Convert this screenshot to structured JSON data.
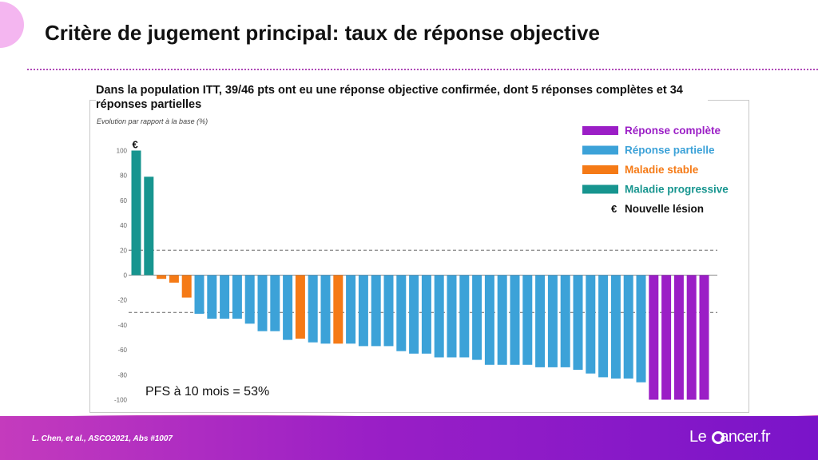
{
  "slide": {
    "title": "Critère de jugement principal: taux de réponse objective",
    "footer_citation": "L. Chen, et al., ASCO2021, Abs #1007",
    "logo_prefix": "Le ",
    "logo_suffix": "ancer.fr"
  },
  "colors": {
    "complete": "#9b1ec6",
    "partial": "#3ca2d8",
    "stable": "#f57a16",
    "progressive": "#17958f",
    "accent": "#b04ab8"
  },
  "chart_data": {
    "type": "bar",
    "title": "Dans la population ITT, 39/46 pts ont eu une réponse objective confirmée, dont 5 réponses complètes et 34 réponses partielles",
    "ylabel": "Evolution par rapport à la base (%)",
    "ylim": [
      -100,
      100
    ],
    "yticks": [
      100,
      80,
      60,
      40,
      20,
      0,
      -20,
      -40,
      -60,
      -80,
      -100
    ],
    "reference_lines": [
      20,
      -30
    ],
    "annotation": "PFS à 10 mois = 53%",
    "marker_symbol": "€",
    "legend_position": "top-right",
    "legend": [
      {
        "label": "Réponse complète",
        "key": "complete"
      },
      {
        "label": "Réponse partielle",
        "key": "partial"
      },
      {
        "label": "Maladie stable",
        "key": "stable"
      },
      {
        "label": "Maladie progressive",
        "key": "progressive"
      },
      {
        "label": "Nouvelle lésion",
        "key": "new_lesion",
        "symbol": "€"
      }
    ],
    "bars": [
      {
        "value": 100,
        "category": "progressive",
        "new_lesion": true
      },
      {
        "value": 79,
        "category": "progressive"
      },
      {
        "value": -3,
        "category": "stable"
      },
      {
        "value": -6,
        "category": "stable"
      },
      {
        "value": -18,
        "category": "stable"
      },
      {
        "value": -31,
        "category": "partial"
      },
      {
        "value": -35,
        "category": "partial"
      },
      {
        "value": -35,
        "category": "partial"
      },
      {
        "value": -35,
        "category": "partial"
      },
      {
        "value": -39,
        "category": "partial"
      },
      {
        "value": -45,
        "category": "partial"
      },
      {
        "value": -45,
        "category": "partial"
      },
      {
        "value": -52,
        "category": "partial"
      },
      {
        "value": -51,
        "category": "stable"
      },
      {
        "value": -54,
        "category": "partial"
      },
      {
        "value": -55,
        "category": "partial"
      },
      {
        "value": -55,
        "category": "stable"
      },
      {
        "value": -55,
        "category": "partial"
      },
      {
        "value": -57,
        "category": "partial"
      },
      {
        "value": -57,
        "category": "partial"
      },
      {
        "value": -57,
        "category": "partial"
      },
      {
        "value": -61,
        "category": "partial"
      },
      {
        "value": -63,
        "category": "partial"
      },
      {
        "value": -63,
        "category": "partial"
      },
      {
        "value": -66,
        "category": "partial"
      },
      {
        "value": -66,
        "category": "partial"
      },
      {
        "value": -66,
        "category": "partial"
      },
      {
        "value": -68,
        "category": "partial"
      },
      {
        "value": -72,
        "category": "partial"
      },
      {
        "value": -72,
        "category": "partial"
      },
      {
        "value": -72,
        "category": "partial"
      },
      {
        "value": -72,
        "category": "partial"
      },
      {
        "value": -74,
        "category": "partial"
      },
      {
        "value": -74,
        "category": "partial"
      },
      {
        "value": -74,
        "category": "partial"
      },
      {
        "value": -76,
        "category": "partial"
      },
      {
        "value": -79,
        "category": "partial"
      },
      {
        "value": -82,
        "category": "partial"
      },
      {
        "value": -83,
        "category": "partial"
      },
      {
        "value": -83,
        "category": "partial"
      },
      {
        "value": -86,
        "category": "partial"
      },
      {
        "value": -100,
        "category": "complete"
      },
      {
        "value": -100,
        "category": "complete"
      },
      {
        "value": -100,
        "category": "complete"
      },
      {
        "value": -100,
        "category": "complete"
      },
      {
        "value": -100,
        "category": "complete"
      }
    ]
  }
}
